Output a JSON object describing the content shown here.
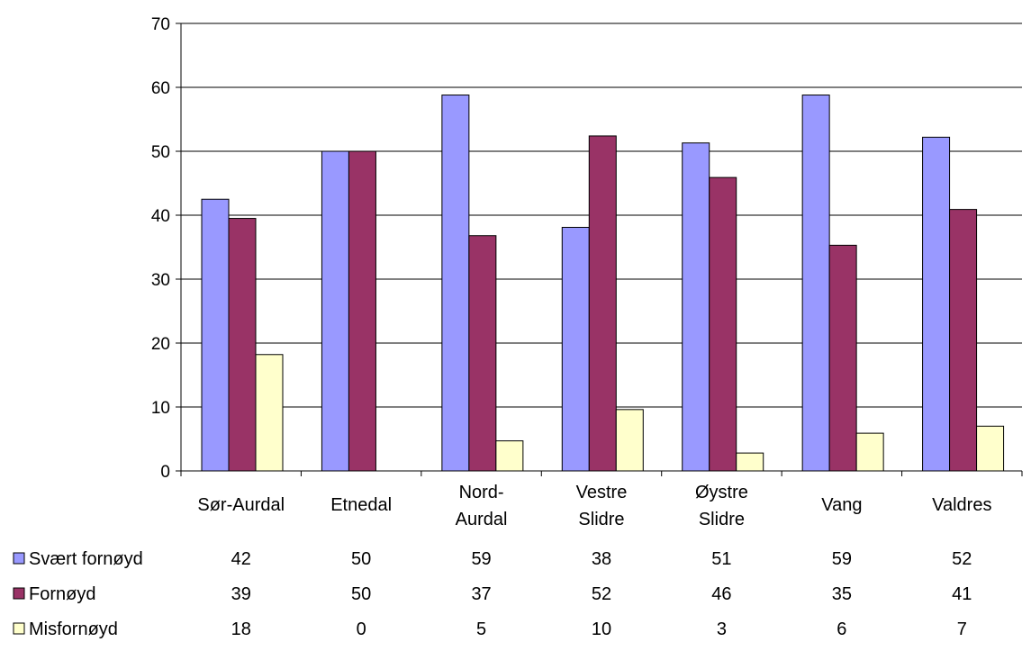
{
  "chart_data": {
    "type": "bar",
    "categories": [
      [
        "Sør-Aurdal"
      ],
      [
        "Etnedal"
      ],
      [
        "Nord-",
        "Aurdal"
      ],
      [
        "Vestre",
        "Slidre"
      ],
      [
        "Øystre",
        "Slidre"
      ],
      [
        "Vang"
      ],
      [
        "Valdres"
      ]
    ],
    "series": [
      {
        "name": "Svært fornøyd",
        "color": "#9999FF",
        "values": [
          42.5,
          50,
          58.8,
          38.1,
          51.3,
          58.8,
          52.2
        ],
        "labels": [
          "42",
          "50",
          "59",
          "38",
          "51",
          "59",
          "52"
        ]
      },
      {
        "name": "Fornøyd",
        "color": "#993366",
        "values": [
          39.5,
          50,
          36.8,
          52.4,
          45.9,
          35.3,
          40.9
        ],
        "labels": [
          "39",
          "50",
          "37",
          "52",
          "46",
          "35",
          "41"
        ]
      },
      {
        "name": "Misfornøyd",
        "color": "#FFFFCC",
        "values": [
          18.2,
          0,
          4.7,
          9.6,
          2.8,
          5.9,
          7.0
        ],
        "labels": [
          "18",
          "0",
          "5",
          "10",
          "3",
          "6",
          "7"
        ]
      }
    ],
    "ylim": [
      0,
      70
    ],
    "yticks": [
      0,
      10,
      20,
      30,
      40,
      50,
      60,
      70
    ],
    "grid": true,
    "legend": "data-table-below"
  }
}
